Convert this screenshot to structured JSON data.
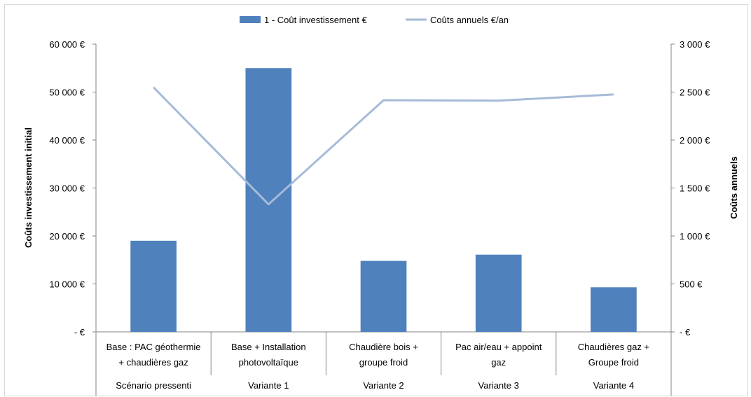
{
  "chart_data": {
    "type": "bar",
    "categories": [
      {
        "line1": "Base : PAC géothermie",
        "line2": "+ chaudières gaz",
        "group": "Scénario pressenti"
      },
      {
        "line1": "Base + Installation",
        "line2": "photovoltaïque",
        "group": "Variante 1"
      },
      {
        "line1": "Chaudière bois +",
        "line2": "groupe froid",
        "group": "Variante 2"
      },
      {
        "line1": "Pac air/eau + appoint",
        "line2": "gaz",
        "group": "Variante 3"
      },
      {
        "line1": "Chaudières gaz +",
        "line2": "Groupe froid",
        "group": "Variante 4"
      }
    ],
    "series": [
      {
        "name": "1 - Coût investissement €",
        "kind": "bar",
        "axis": "left",
        "color": "#4f81bd",
        "values": [
          19000,
          55000,
          14800,
          16100,
          9300
        ]
      },
      {
        "name": "Coûts annuels €/an",
        "kind": "line",
        "axis": "right",
        "color": "#a6bbd7",
        "values": [
          2550,
          1330,
          2415,
          2410,
          2475
        ]
      }
    ],
    "ylabel": "Coûts investissement initial",
    "y2label": "Coûts annuels",
    "ylim": [
      0,
      60000
    ],
    "y2lim": [
      0,
      3000
    ],
    "yticks": [
      "-   €",
      "10 000 €",
      "20 000 €",
      "30 000 €",
      "40 000 €",
      "50 000 €",
      "60 000 €"
    ],
    "y2ticks": [
      "-   €",
      "500 €",
      "1 000 €",
      "1 500 €",
      "2 000 €",
      "2 500 €",
      "3 000 €"
    ],
    "legend_position": "top",
    "grid": false
  }
}
